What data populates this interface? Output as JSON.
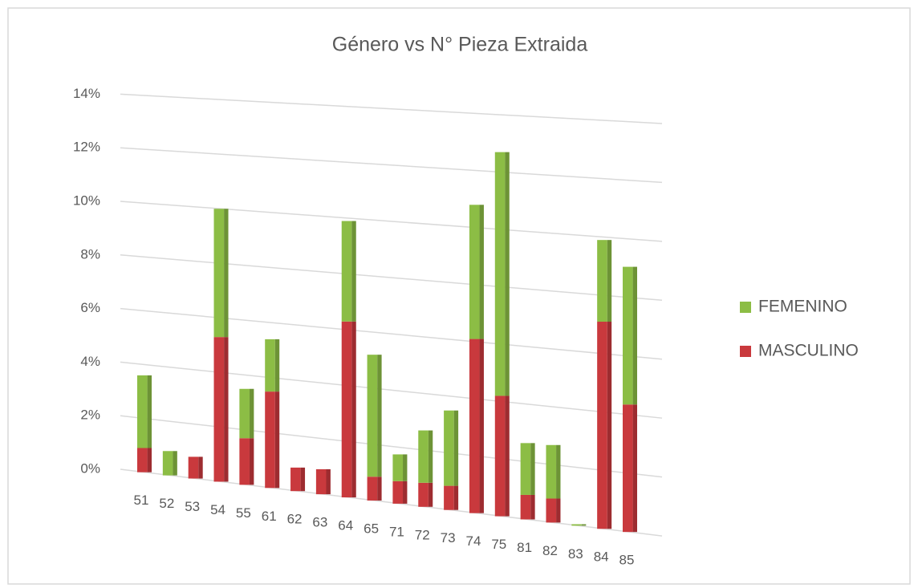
{
  "chart_data": {
    "type": "bar",
    "stacked": true,
    "title": "Género vs N° Pieza Extraida",
    "categories": [
      "51",
      "52",
      "53",
      "54",
      "55",
      "61",
      "62",
      "63",
      "64",
      "65",
      "71",
      "72",
      "73",
      "74",
      "75",
      "81",
      "82",
      "83",
      "84",
      "85"
    ],
    "series": [
      {
        "name": "MASCULINO",
        "color": "#c9393d",
        "values": [
          0.9,
          0,
          0.8,
          5.3,
          1.7,
          3.5,
          0.85,
          0.9,
          6.3,
          0.85,
          0.8,
          0.85,
          0.85,
          6.1,
          4.2,
          0.85,
          0.83,
          0,
          7.1,
          4.35
        ]
      },
      {
        "name": "FEMENINO",
        "color": "#8cbd45",
        "values": [
          2.7,
          0.9,
          0,
          4.7,
          1.8,
          1.9,
          0,
          0,
          3.6,
          4.35,
          0.95,
          1.85,
          2.65,
          4.7,
          8.5,
          1.8,
          1.85,
          0.05,
          2.8,
          4.7
        ]
      }
    ],
    "ylim": [
      0,
      14
    ],
    "yticks": [
      {
        "value": 0,
        "label": "0%"
      },
      {
        "value": 2,
        "label": "2%"
      },
      {
        "value": 4,
        "label": "4%"
      },
      {
        "value": 6,
        "label": "6%"
      },
      {
        "value": 8,
        "label": "8%"
      },
      {
        "value": 10,
        "label": "10%"
      },
      {
        "value": 12,
        "label": "12%"
      },
      {
        "value": 14,
        "label": "14%"
      }
    ],
    "grid": true,
    "legend": "right"
  }
}
